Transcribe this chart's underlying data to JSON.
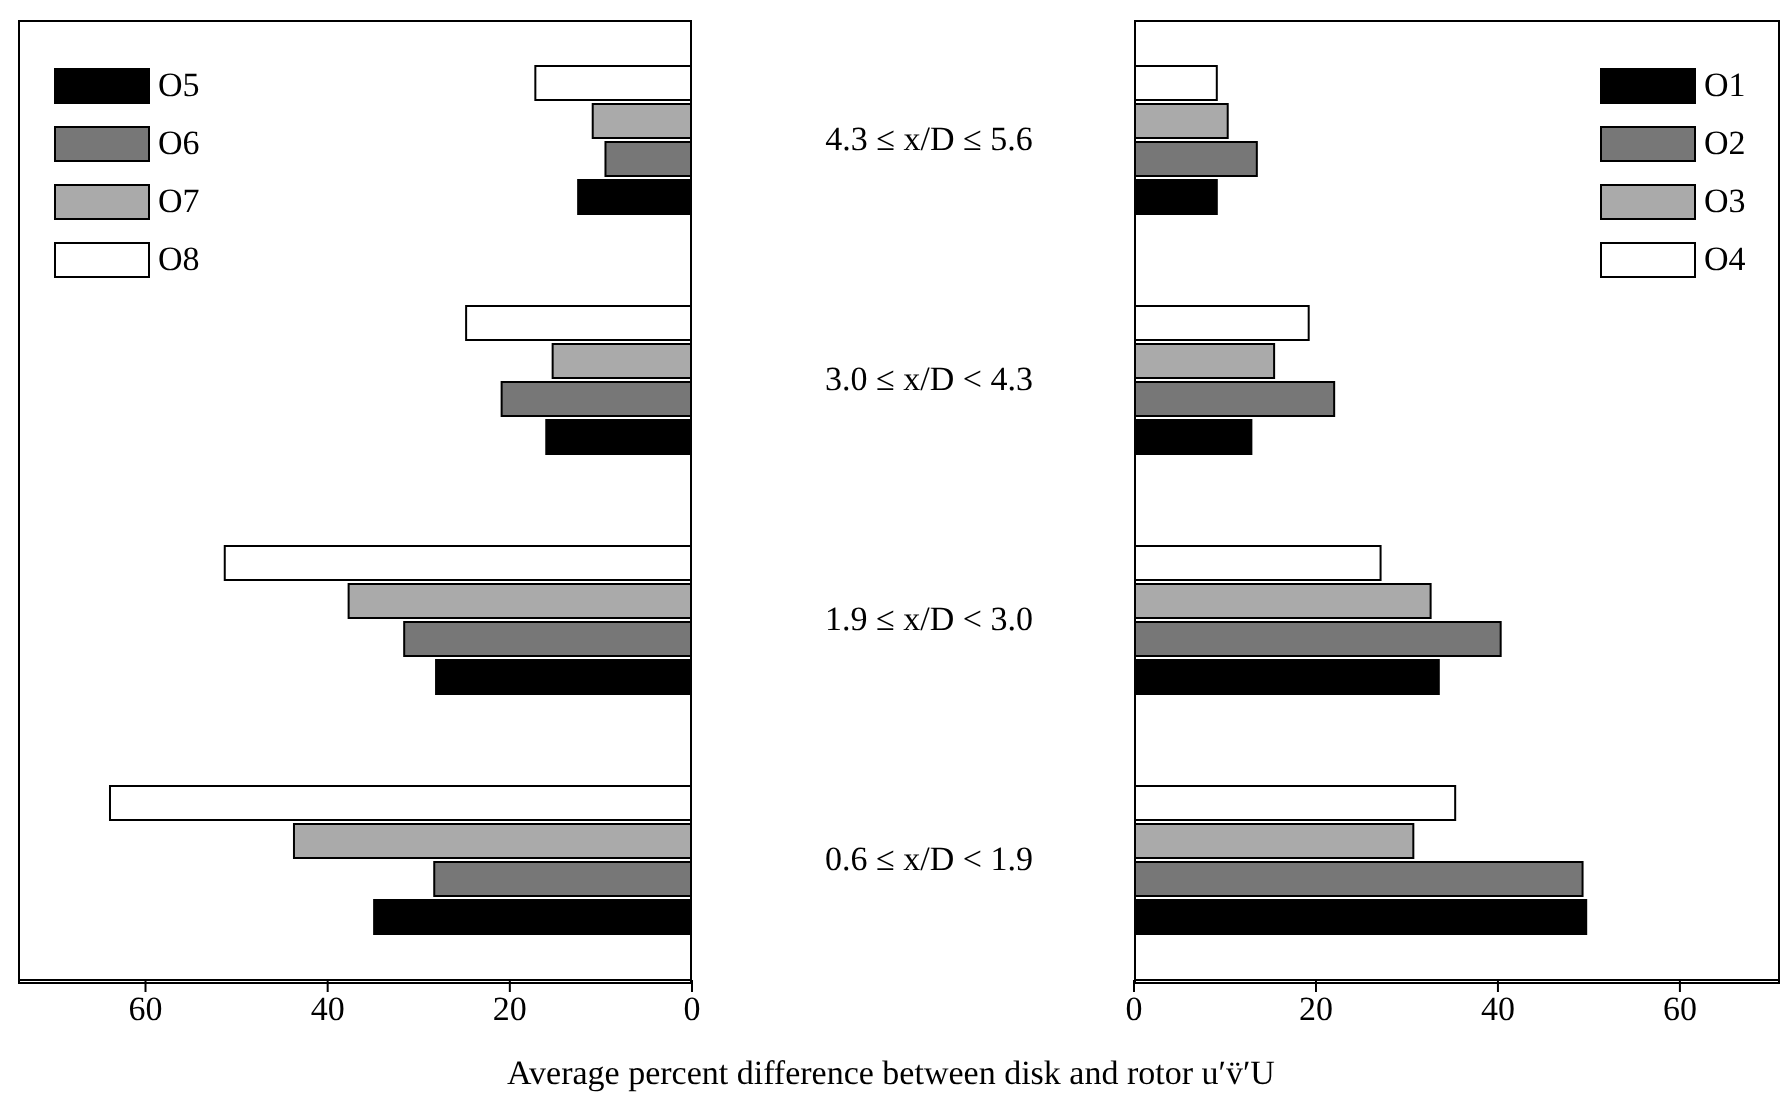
{
  "chart_data": [
    {
      "type": "bar",
      "orientation": "horizontal",
      "xlabel": "Average percent difference between disk and rotor u′v̈′U",
      "categories": [
        "4.3 ≤ x/D ≤ 5.6",
        "3.0 ≤ x/D < 4.3",
        "1.9 ≤ x/D < 3.0",
        "0.6 ≤ x/D < 1.9"
      ],
      "xlim": [
        74,
        0
      ],
      "xticks": [
        60,
        40,
        20,
        0
      ],
      "legend": "top left",
      "grid": false,
      "series": [
        {
          "name": "O8",
          "color": "#ffffff",
          "values": [
            17.2,
            24.8,
            51.3,
            63.9
          ]
        },
        {
          "name": "O7",
          "color": "#aaaaaa",
          "values": [
            10.9,
            15.3,
            37.7,
            43.7
          ]
        },
        {
          "name": "O6",
          "color": "#777777",
          "values": [
            9.5,
            20.9,
            31.6,
            28.3
          ]
        },
        {
          "name": "O5",
          "color": "#000000",
          "values": [
            12.5,
            16.0,
            28.1,
            34.9
          ]
        }
      ]
    },
    {
      "type": "bar",
      "orientation": "horizontal",
      "tick_labels": "x",
      "xlim": [
        0,
        71
      ],
      "xticks": [
        0,
        20,
        40,
        60
      ],
      "legend": "top right",
      "grid": false,
      "series": [
        {
          "name": "O4",
          "color": "#ffffff",
          "values": [
            9.1,
            19.2,
            27.1,
            35.3
          ]
        },
        {
          "name": "O3",
          "color": "#aaaaaa",
          "values": [
            10.3,
            15.4,
            32.6,
            30.7
          ]
        },
        {
          "name": "O2",
          "color": "#777777",
          "values": [
            13.5,
            22.0,
            40.3,
            49.3
          ]
        },
        {
          "name": "O1",
          "color": "#000000",
          "values": [
            9.1,
            12.9,
            33.5,
            49.7
          ]
        }
      ]
    }
  ]
}
